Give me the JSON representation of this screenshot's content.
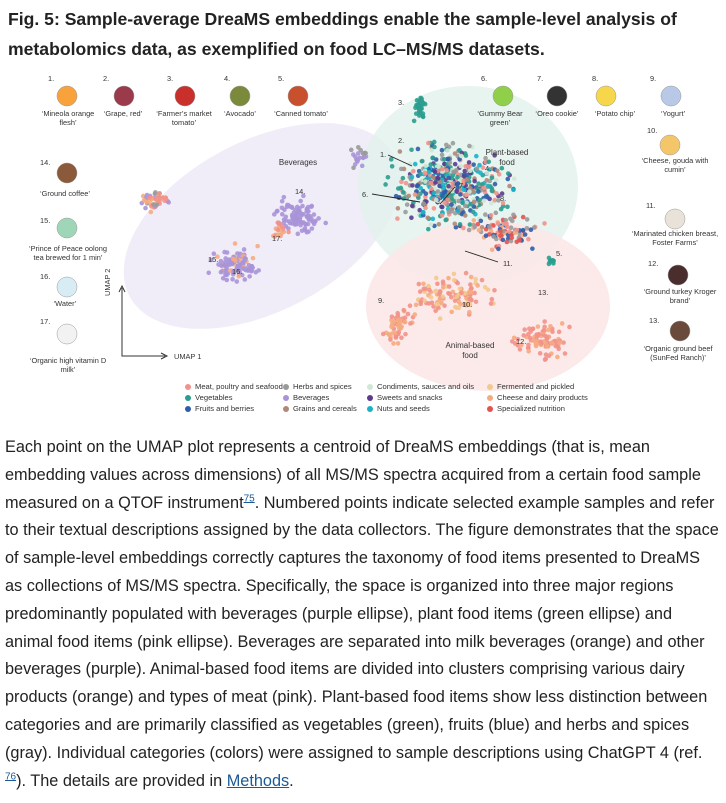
{
  "header": {
    "title": "Fig. 5: Sample-average DreaMS embeddings enable the sample-level analysis of metabolomics data, as exemplified on food LC–MS/MS datasets."
  },
  "figure": {
    "items": [
      {
        "number": "1.",
        "label": "‘Mineola orange flesh’"
      },
      {
        "number": "2.",
        "label": "‘Grape, red’"
      },
      {
        "number": "3.",
        "label": "‘Farmer’s market tomato’"
      },
      {
        "number": "4.",
        "label": "‘Avocado’"
      },
      {
        "number": "5.",
        "label": "‘Canned tomato’"
      },
      {
        "number": "6.",
        "label": "‘Gummy Bear green’"
      },
      {
        "number": "7.",
        "label": "‘Oreo cookie’"
      },
      {
        "number": "8.",
        "label": "‘Potato chip’"
      },
      {
        "number": "9.",
        "label": "‘Yogurt’"
      },
      {
        "number": "10.",
        "label": "‘Cheese, gouda with cumin’"
      },
      {
        "number": "11.",
        "label": "‘Marinated chicken breast, Foster Farms’"
      },
      {
        "number": "12.",
        "label": "‘Ground turkey Kroger brand’"
      },
      {
        "number": "13.",
        "label": "‘Organic ground beef (SunFed Ranch)’"
      },
      {
        "number": "14.",
        "label": "‘Ground coffee’"
      },
      {
        "number": "15.",
        "label": "‘Prince of Peace oolong tea brewed for 1 min’"
      },
      {
        "number": "16.",
        "label": "‘Water’"
      },
      {
        "number": "17.",
        "label": "‘Organic high vitamin D milk’"
      }
    ],
    "regions": [
      "Beverages",
      "Plant-based food",
      "Animal-based food"
    ],
    "axes": {
      "x": "UMAP 1",
      "y": "UMAP 2"
    },
    "legend": [
      {
        "name": "Meat, poultry and seafood",
        "color": "#f2928a"
      },
      {
        "name": "Vegetables",
        "color": "#2a9d8f"
      },
      {
        "name": "Fruits and berries",
        "color": "#2f5ea8"
      },
      {
        "name": "Herbs and spices",
        "color": "#9a9a9a"
      },
      {
        "name": "Beverages",
        "color": "#a993d8"
      },
      {
        "name": "Grains and cereals",
        "color": "#b08878"
      },
      {
        "name": "Condiments, sauces and oils",
        "color": "#cfe8d4"
      },
      {
        "name": "Sweets and snacks",
        "color": "#5b3b8e"
      },
      {
        "name": "Nuts and seeds",
        "color": "#1ab2c8"
      },
      {
        "name": "Fermented and pickled",
        "color": "#f2c98e"
      },
      {
        "name": "Cheese and dairy products",
        "color": "#f5ab80"
      },
      {
        "name": "Specialized nutrition",
        "color": "#e4534f"
      }
    ]
  },
  "caption": {
    "parts": [
      "Each point on the UMAP plot represents a centroid of DreaMS embeddings (that is, mean embedding values across dimensions) of all MS/MS spectra acquired from a certain food sample measured on a QTOF instrument",
      "75",
      ". Numbered points indicate selected example samples and refer to their textual descriptions assigned by the data collectors. The figure demonstrates that the space of sample-level embeddings correctly captures the taxonomy of food items presented to DreaMS as collections of MS/MS spectra. Specifically, the space is organized into three major regions predominantly populated with beverages (purple ellipse), plant food items (green ellipse) and animal food items (pink ellipse). Beverages are separated into milk beverages (orange) and other beverages (purple). Animal-based food items are divided into clusters comprising various dairy products (orange) and types of meat (pink). Plant-based food items show less distinction between categories and are primarily classified as vegetables (green), fruits (blue) and herbs and spices (gray). Individual categories (colors) were assigned to sample descriptions using ChatGPT 4 (ref. ",
      "76",
      "). The details are provided in ",
      "Methods",
      "."
    ]
  }
}
